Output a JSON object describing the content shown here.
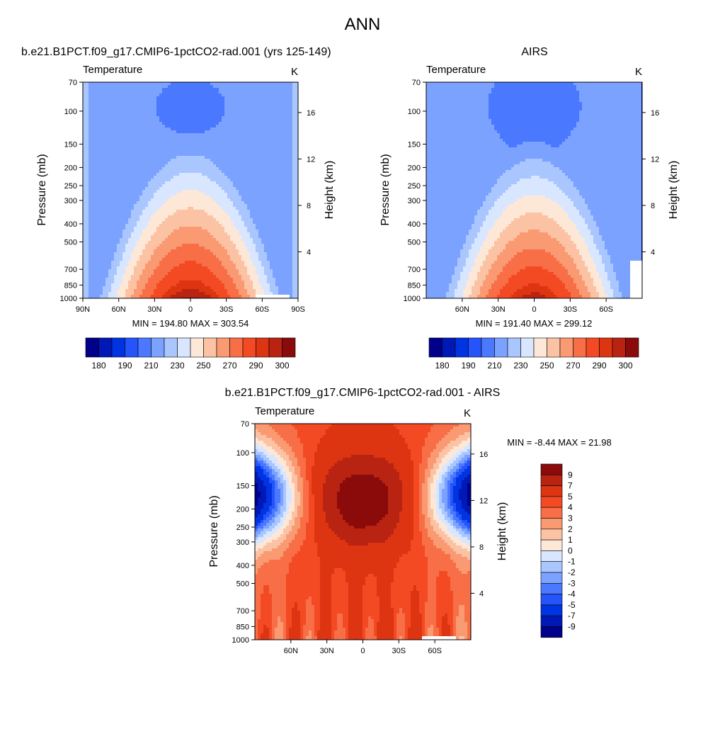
{
  "figure": {
    "title": "ANN"
  },
  "colors": {
    "abs_levels": [
      "#00008b",
      "#0019b6",
      "#0033e1",
      "#2454fa",
      "#4a79ff",
      "#7ba2ff",
      "#a9c6ff",
      "#d8e6ff",
      "#fde8d8",
      "#fcc2a4",
      "#fa9a73",
      "#f86f47",
      "#f34a24",
      "#dd3512",
      "#b82312",
      "#8b0a0a"
    ],
    "diff_levels": [
      "#00008b",
      "#0019b6",
      "#0033e1",
      "#2454fa",
      "#4a79ff",
      "#7ba2ff",
      "#a9c6ff",
      "#d8e6ff",
      "#fde8d8",
      "#fcc2a4",
      "#fa9a73",
      "#f86f47",
      "#f34a24",
      "#dd3512",
      "#b82312",
      "#8b0a0a"
    ]
  },
  "chart_data": [
    {
      "id": "model",
      "type": "heatmap",
      "title_left": "b.e21.B1PCT.f09_g17.CMIP6-1pctCO2-rad.001 (yrs 125-149)",
      "title_right": "",
      "subtitle_left": "Temperature",
      "units": "K",
      "ylabel": "Pressure (mb)",
      "y2label": "Height (km)",
      "x_ticks": [
        "90N",
        "60N",
        "30N",
        "0",
        "30S",
        "60S",
        "90S"
      ],
      "x_tick_values": [
        90,
        60,
        30,
        0,
        -30,
        -60,
        -90
      ],
      "xlim": [
        90,
        -90
      ],
      "y_ticks": [
        70,
        100,
        150,
        200,
        250,
        300,
        400,
        500,
        700,
        850,
        1000
      ],
      "ylim": [
        70,
        1000
      ],
      "yscale": "log",
      "y2_ticks": [
        4,
        8,
        12,
        16
      ],
      "min_max": "MIN = 194.80  MAX = 303.54",
      "min": 194.8,
      "max": 303.54,
      "levels": [
        180,
        185,
        190,
        200,
        210,
        220,
        230,
        240,
        250,
        260,
        270,
        280,
        290,
        295,
        300
      ],
      "colorbar_labels": [
        "180",
        "190",
        "210",
        "230",
        "250",
        "270",
        "290",
        "300"
      ],
      "colorbar_label_index": [
        1,
        3,
        5,
        7,
        9,
        11,
        13,
        15
      ]
    },
    {
      "id": "obs",
      "type": "heatmap",
      "title_left": "",
      "title_right": "AIRS",
      "subtitle_left": "Temperature",
      "units": "K",
      "ylabel": "Pressure (mb)",
      "y2label": "Height (km)",
      "x_ticks": [
        "60N",
        "30N",
        "0",
        "30S",
        "60S"
      ],
      "x_tick_values": [
        60,
        30,
        0,
        -30,
        -60
      ],
      "xlim": [
        90,
        -90
      ],
      "y_ticks": [
        70,
        100,
        150,
        200,
        250,
        300,
        400,
        500,
        700,
        850,
        1000
      ],
      "ylim": [
        70,
        1000
      ],
      "yscale": "log",
      "y2_ticks": [
        4,
        8,
        12,
        16
      ],
      "min_max": "MIN = 191.40  MAX = 299.12",
      "min": 191.4,
      "max": 299.12,
      "levels": [
        180,
        185,
        190,
        200,
        210,
        220,
        230,
        240,
        250,
        260,
        270,
        280,
        290,
        295,
        300
      ],
      "colorbar_labels": [
        "180",
        "190",
        "210",
        "230",
        "250",
        "270",
        "290",
        "300"
      ],
      "colorbar_label_index": [
        1,
        3,
        5,
        7,
        9,
        11,
        13,
        15
      ]
    },
    {
      "id": "diff",
      "type": "heatmap",
      "title_center": "b.e21.B1PCT.f09_g17.CMIP6-1pctCO2-rad.001 - AIRS",
      "subtitle_left": "Temperature",
      "units": "K",
      "ylabel": "Pressure (mb)",
      "y2label": "Height (km)",
      "x_ticks": [
        "60N",
        "30N",
        "0",
        "30S",
        "60S"
      ],
      "x_tick_values": [
        60,
        30,
        0,
        -30,
        -60
      ],
      "xlim": [
        90,
        -90
      ],
      "y_ticks": [
        70,
        100,
        150,
        200,
        250,
        300,
        400,
        500,
        700,
        850,
        1000
      ],
      "ylim": [
        70,
        1000
      ],
      "yscale": "log",
      "y2_ticks": [
        4,
        8,
        12,
        16
      ],
      "min_max": "MIN =  -8.44  MAX =  21.98",
      "min": -8.44,
      "max": 21.98,
      "levels": [
        -9,
        -7,
        -5,
        -4,
        -3,
        -2,
        -1,
        0,
        1,
        2,
        3,
        4,
        5,
        7,
        9
      ],
      "colorbar_labels": [
        "9",
        "7",
        "5",
        "4",
        "3",
        "2",
        "1",
        "0",
        "-1",
        "-2",
        "-3",
        "-4",
        "-5",
        "-7",
        "-9"
      ]
    }
  ]
}
